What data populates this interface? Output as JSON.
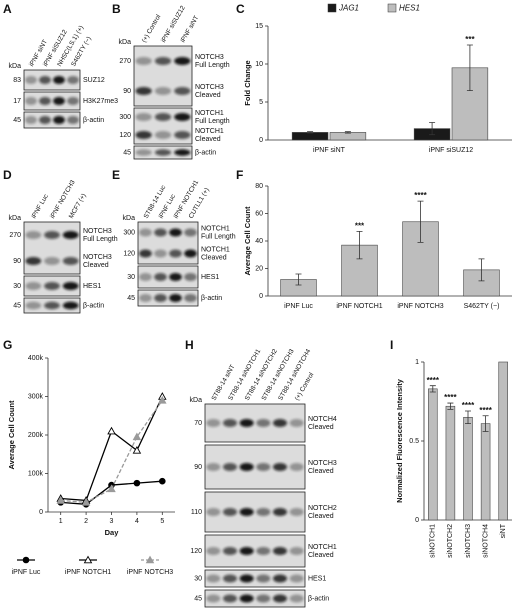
{
  "blots": [
    {
      "panel": "A",
      "kda_header": "kDa",
      "lanes": [
        "iPNF siNT",
        "iPNF siSUZ12",
        "NHSC(LS.1) (+)",
        "S462TY (−)"
      ],
      "boxes": [
        {
          "kda": [
            83
          ],
          "labels": [
            [
              "SUZ12"
            ]
          ]
        },
        {
          "kda": [
            17
          ],
          "labels": [
            [
              "H3K27me3"
            ]
          ]
        },
        {
          "kda": [
            45
          ],
          "labels": [
            [
              "β-actin"
            ]
          ]
        }
      ]
    },
    {
      "panel": "B",
      "kda_header": "kDa",
      "lanes": [
        "(+) Control",
        "iPNF siSUZ12",
        "iPNF siNT"
      ],
      "boxes": [
        {
          "kda": [
            270,
            90
          ],
          "labels": [
            [
              "NOTCH3",
              "Full Length"
            ],
            [
              "NOTCH3",
              "Cleaved"
            ]
          ]
        },
        {
          "kda": [
            300,
            120
          ],
          "labels": [
            [
              "NOTCH1",
              "Full Length"
            ],
            [
              "NOTCH1",
              "Cleaved"
            ]
          ]
        },
        {
          "kda": [
            45
          ],
          "labels": [
            [
              "β-actin"
            ]
          ]
        }
      ]
    },
    {
      "panel": "D",
      "kda_header": "kDa",
      "lanes": [
        "iPNF Luc",
        "iPNF NOTCH3",
        "MCF7 (+)"
      ],
      "boxes": [
        {
          "kda": [
            270,
            90
          ],
          "labels": [
            [
              "NOTCH3",
              "Full Length"
            ],
            [
              "NOTCH3",
              "Cleaved"
            ]
          ]
        },
        {
          "kda": [
            30
          ],
          "labels": [
            [
              "HES1"
            ]
          ]
        },
        {
          "kda": [
            45
          ],
          "labels": [
            [
              "β-actin"
            ]
          ]
        }
      ]
    },
    {
      "panel": "E",
      "kda_header": "kDa",
      "lanes": [
        "ST88-14 Luc",
        "iPNF Luc",
        "iPNF NOTCH1",
        "CUTLL1 (+)"
      ],
      "boxes": [
        {
          "kda": [
            300,
            120
          ],
          "labels": [
            [
              "NOTCH1",
              "Full Length"
            ],
            [
              "NOTCH1",
              "Cleaved"
            ]
          ]
        },
        {
          "kda": [
            30
          ],
          "labels": [
            [
              "HES1"
            ]
          ]
        },
        {
          "kda": [
            45
          ],
          "labels": [
            [
              "β-actin"
            ]
          ]
        }
      ]
    },
    {
      "panel": "H",
      "kda_header": "kDa",
      "lanes": [
        "ST88-14 siNT",
        "ST88-14 siNOTCH1",
        "ST88-14 siNOTCH2",
        "ST88-14 siNOTCH3",
        "ST88-14 siNOTCH4",
        "(+) Control"
      ],
      "boxes": [
        {
          "kda": [
            70
          ],
          "labels": [
            [
              "NOTCH4",
              "Cleaved"
            ]
          ]
        },
        {
          "kda": [
            90
          ],
          "labels": [
            [
              "NOTCH3",
              "Cleaved"
            ]
          ]
        },
        {
          "kda": [
            110
          ],
          "labels": [
            [
              "NOTCH2",
              "Cleaved"
            ]
          ]
        },
        {
          "kda": [
            120
          ],
          "labels": [
            [
              "NOTCH1",
              "Cleaved"
            ]
          ]
        },
        {
          "kda": [
            30
          ],
          "labels": [
            [
              "HES1"
            ]
          ]
        },
        {
          "kda": [
            45
          ],
          "labels": [
            [
              "β-actin"
            ]
          ]
        }
      ]
    }
  ],
  "chart_data": [
    {
      "panel": "C",
      "type": "bar",
      "ylabel": "Fold Change",
      "categories": [
        "iPNF siNT",
        "iPNF siSUZ12"
      ],
      "series": [
        {
          "name": "JAG1",
          "color": "#1a1a1a",
          "values": [
            1,
            1.5
          ],
          "errors": [
            0.1,
            0.8
          ],
          "significance": [
            null,
            null
          ]
        },
        {
          "name": "HES1",
          "color": "#bdbdbd",
          "values": [
            1,
            9.5
          ],
          "errors": [
            0.1,
            3
          ],
          "significance": [
            null,
            "***"
          ]
        }
      ],
      "ylim": [
        0,
        15
      ],
      "yticks": [
        0,
        5,
        10,
        15
      ],
      "grid": false
    },
    {
      "panel": "F",
      "type": "bar",
      "ylabel": "Average Cell Count",
      "categories": [
        "iPNF Luc",
        "iPNF NOTCH1",
        "iPNF NOTCH3",
        "S462TY (−)"
      ],
      "values": [
        12,
        37,
        54,
        19
      ],
      "errors": [
        4,
        10,
        15,
        8
      ],
      "significance": [
        null,
        "***",
        "****",
        null
      ],
      "color": "#bdbdbd",
      "ylim": [
        0,
        80
      ],
      "yticks": [
        0,
        20,
        40,
        60,
        80
      ],
      "grid": false
    },
    {
      "panel": "G",
      "type": "line",
      "ylabel": "Average Cell Count",
      "xlabel": "Day",
      "x": [
        1,
        2,
        3,
        4,
        5
      ],
      "series": [
        {
          "name": "iPNF Luc",
          "color": "#000000",
          "marker": "circle",
          "linestyle": "solid",
          "values": [
            25000,
            20000,
            70000,
            75000,
            80000
          ]
        },
        {
          "name": "iPNF NOTCH1",
          "color": "#000000",
          "marker": "triangle-open",
          "linestyle": "solid",
          "values": [
            35000,
            30000,
            210000,
            160000,
            300000
          ]
        },
        {
          "name": "iPNF NOTCH3",
          "color": "#9a9a9a",
          "marker": "triangle",
          "linestyle": "dashed",
          "values": [
            30000,
            25000,
            60000,
            195000,
            290000
          ]
        }
      ],
      "xlim": [
        0.5,
        5.5
      ],
      "xticks": [
        1,
        2,
        3,
        4,
        5
      ],
      "ylim": [
        0,
        400000
      ],
      "yticks": [
        0,
        {
          "value": 100000,
          "label": "100k"
        },
        {
          "value": 200000,
          "label": "200k"
        },
        {
          "value": 300000,
          "label": "300k"
        },
        {
          "value": 400000,
          "label": "400k"
        }
      ],
      "grid": false
    },
    {
      "panel": "I",
      "type": "bar",
      "ylabel": "Normalized Fluorescence Intensity",
      "categories": [
        "siNOTCH1",
        "siNOTCH2",
        "siNOTCH3",
        "siNOTCH4",
        "siNT"
      ],
      "values": [
        0.83,
        0.72,
        0.65,
        0.61,
        1
      ],
      "errors": [
        0.02,
        0.02,
        0.04,
        0.05,
        null
      ],
      "significance": [
        "****",
        "****",
        "****",
        "****",
        null
      ],
      "color": "#bdbdbd",
      "ylim": [
        0,
        1
      ],
      "yticks": [
        0,
        0.5,
        1
      ],
      "grid": false
    }
  ]
}
